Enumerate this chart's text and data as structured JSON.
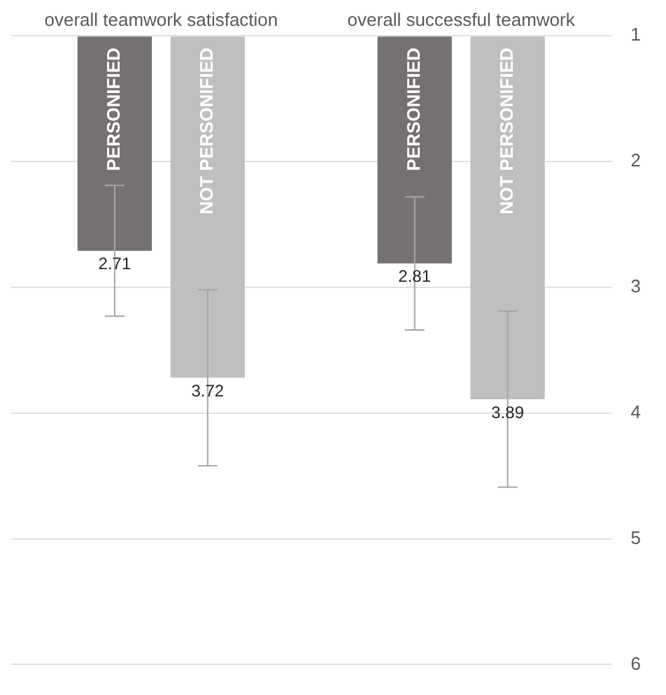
{
  "chart_data": {
    "type": "bar",
    "categories": [
      "overall teamwork satisfaction",
      "overall successful teamwork"
    ],
    "series": [
      {
        "name": "PERSONIFIED",
        "color": "#767171",
        "values": [
          2.71,
          2.81
        ],
        "errors": [
          0.52,
          0.53
        ]
      },
      {
        "name": "NOT PERSONIFIED",
        "color": "#bfbfbf",
        "values": [
          3.72,
          3.89
        ],
        "errors": [
          0.7,
          0.7
        ]
      }
    ],
    "ylim": [
      6,
      1
    ],
    "yticks": [
      1,
      2,
      3,
      4,
      5,
      6
    ],
    "grid": "y",
    "legend": false,
    "data_labels": true
  }
}
